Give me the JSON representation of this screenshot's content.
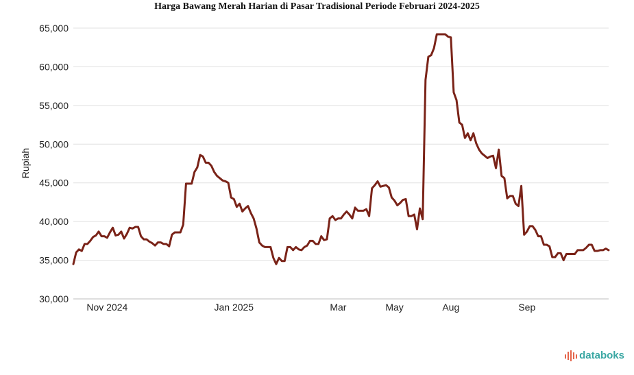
{
  "chart_data": {
    "type": "line",
    "title": "Harga Bawang Merah Harian di Pasar Tradisional Periode Februari 2024-2025",
    "ylabel": "Rupiah",
    "xlabel": "",
    "ylim": [
      30000,
      65000
    ],
    "yticks": [
      "30,000",
      "35,000",
      "40,000",
      "45,000",
      "50,000",
      "55,000",
      "60,000",
      "65,000"
    ],
    "xtick_labels": [
      {
        "label": "Nov 2024",
        "index": 12
      },
      {
        "label": "Jan 2025",
        "index": 57
      },
      {
        "label": "Mar",
        "index": 94
      },
      {
        "label": "May",
        "index": 114
      },
      {
        "label": "Aug",
        "index": 134
      },
      {
        "label": "Sep",
        "index": 161
      }
    ],
    "grid": true,
    "line_color": "#7a2318",
    "series": [
      {
        "values": [
          34500,
          36000,
          36400,
          36200,
          37100,
          37100,
          37500,
          38000,
          38200,
          38700,
          38100,
          38100,
          37900,
          38600,
          39200,
          38200,
          38300,
          38700,
          37800,
          38400,
          39200,
          39100,
          39300,
          39300,
          38100,
          37700,
          37700,
          37400,
          37200,
          36900,
          37300,
          37300,
          37100,
          37100,
          36800,
          38300,
          38600,
          38600,
          38600,
          39600,
          44900,
          44900,
          44900,
          46400,
          47000,
          48600,
          48400,
          47600,
          47600,
          47200,
          46400,
          45900,
          45600,
          45300,
          45200,
          45000,
          43100,
          42900,
          41900,
          42300,
          41300,
          41700,
          42000,
          41100,
          40400,
          39100,
          37300,
          36900,
          36700,
          36700,
          36700,
          35300,
          34500,
          35300,
          34900,
          34900,
          36700,
          36700,
          36300,
          36700,
          36400,
          36300,
          36700,
          36900,
          37500,
          37500,
          37100,
          37100,
          38100,
          37600,
          37700,
          40400,
          40700,
          40200,
          40400,
          40400,
          40900,
          41300,
          40900,
          40400,
          41800,
          41400,
          41400,
          41400,
          41600,
          40700,
          44300,
          44700,
          45200,
          44500,
          44600,
          44700,
          44400,
          43100,
          42700,
          42100,
          42400,
          42800,
          42900,
          40700,
          40700,
          40900,
          39000,
          41700,
          40300,
          58300,
          61300,
          61500,
          62400,
          64200,
          64200,
          64200,
          64200,
          63900,
          63800,
          56700,
          55700,
          52800,
          52500,
          50800,
          51400,
          50500,
          51400,
          50100,
          49300,
          48800,
          48500,
          48200,
          48400,
          48500,
          46900,
          49300,
          45900,
          45600,
          43000,
          43300,
          43300,
          42300,
          42000,
          44600,
          38300,
          38700,
          39400,
          39400,
          38900,
          38100,
          38100,
          37000,
          37000,
          36800,
          35400,
          35400,
          35900,
          35900,
          35000,
          35800,
          35800,
          35800,
          35800,
          36300,
          36300,
          36300,
          36600,
          37000,
          37000,
          36200,
          36200,
          36300,
          36300,
          36500,
          36300
        ]
      }
    ]
  },
  "branding": {
    "text": "databoks",
    "icon": "databoks-logo-icon"
  }
}
